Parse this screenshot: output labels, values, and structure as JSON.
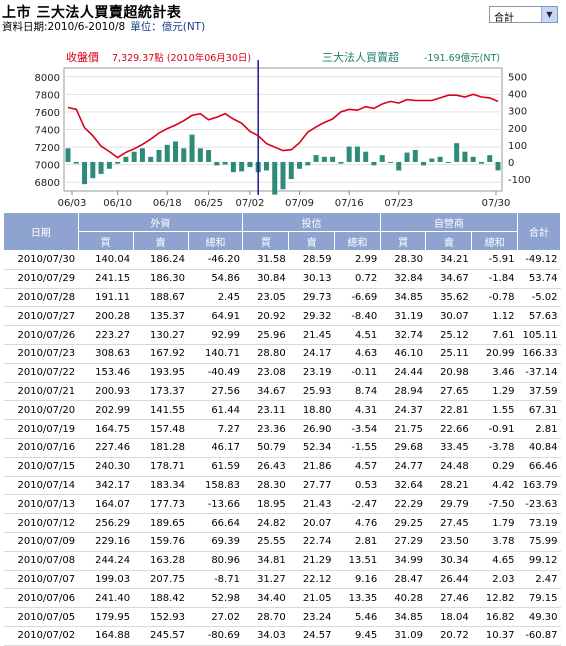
{
  "header": {
    "title": "上市 三大法人買賣超統計表",
    "range": "資料日期:2010/6-2010/8",
    "unit": "單位：億元(NT)"
  },
  "select": {
    "value": "合計"
  },
  "chart_data": {
    "type": "bar+line",
    "left_label": "收盤價",
    "left_value": "7,329.37點 (2010年06月30日)",
    "right_label": "三大法人買賣超",
    "right_value": "-191.69億元(NT)",
    "left_axis": {
      "ticks": [
        "8000",
        "7800",
        "7600",
        "7400",
        "7200",
        "7000",
        "6800"
      ],
      "min": 6700,
      "max": 8100
    },
    "right_axis": {
      "ticks": [
        "500",
        "400",
        "300",
        "200",
        "100",
        "0",
        "-100"
      ],
      "min": -170,
      "max": 550
    },
    "x_ticks": [
      "06/03",
      "06/10",
      "06/18",
      "06/25",
      "07/02",
      "07/09",
      "07/16",
      "07/23",
      "07/30"
    ],
    "marker_label": "06/30",
    "line_series": {
      "name": "收盤價",
      "values": [
        7650,
        7630,
        7420,
        7330,
        7210,
        7150,
        7080,
        7140,
        7180,
        7230,
        7290,
        7360,
        7410,
        7450,
        7500,
        7560,
        7580,
        7510,
        7540,
        7580,
        7520,
        7470,
        7380,
        7329,
        7240,
        7200,
        7160,
        7170,
        7250,
        7370,
        7430,
        7480,
        7520,
        7600,
        7630,
        7620,
        7660,
        7640,
        7690,
        7720,
        7700,
        7740,
        7730,
        7730,
        7730,
        7760,
        7790,
        7790,
        7770,
        7800,
        7770,
        7760,
        7720
      ]
    },
    "bar_series": {
      "name": "三大法人買賣超",
      "values": [
        80,
        -10,
        -130,
        -95,
        -70,
        -40,
        -10,
        30,
        60,
        80,
        30,
        70,
        100,
        120,
        80,
        160,
        80,
        70,
        -20,
        -15,
        -60,
        -55,
        -30,
        -60,
        -50,
        -191,
        -160,
        -100,
        -40,
        -20,
        40,
        30,
        30,
        -10,
        90,
        90,
        60,
        -20,
        40,
        -5,
        -50,
        55,
        70,
        -20,
        20,
        30,
        -5,
        110,
        60,
        30,
        -10,
        40,
        -49
      ]
    }
  },
  "table": {
    "headers": {
      "date": "日期",
      "foreign": "外資",
      "trust": "投信",
      "dealer": "自營商",
      "total": "合計",
      "buy": "買",
      "sell": "賣",
      "net": "總和"
    },
    "rows": [
      [
        "2010/07/30",
        "140.04",
        "186.24",
        "-46.20",
        "31.58",
        "28.59",
        "2.99",
        "28.30",
        "34.21",
        "-5.91",
        "-49.12"
      ],
      [
        "2010/07/29",
        "241.15",
        "186.30",
        "54.86",
        "30.84",
        "30.13",
        "0.72",
        "32.84",
        "34.67",
        "-1.84",
        "53.74"
      ],
      [
        "2010/07/28",
        "191.11",
        "188.67",
        "2.45",
        "23.05",
        "29.73",
        "-6.69",
        "34.85",
        "35.62",
        "-0.78",
        "-5.02"
      ],
      [
        "2010/07/27",
        "200.28",
        "135.37",
        "64.91",
        "20.92",
        "29.32",
        "-8.40",
        "31.19",
        "30.07",
        "1.12",
        "57.63"
      ],
      [
        "2010/07/26",
        "223.27",
        "130.27",
        "92.99",
        "25.96",
        "21.45",
        "4.51",
        "32.74",
        "25.12",
        "7.61",
        "105.11"
      ],
      [
        "2010/07/23",
        "308.63",
        "167.92",
        "140.71",
        "28.80",
        "24.17",
        "4.63",
        "46.10",
        "25.11",
        "20.99",
        "166.33"
      ],
      [
        "2010/07/22",
        "153.46",
        "193.95",
        "-40.49",
        "23.08",
        "23.19",
        "-0.11",
        "24.44",
        "20.98",
        "3.46",
        "-37.14"
      ],
      [
        "2010/07/21",
        "200.93",
        "173.37",
        "27.56",
        "34.67",
        "25.93",
        "8.74",
        "28.94",
        "27.65",
        "1.29",
        "37.59"
      ],
      [
        "2010/07/20",
        "202.99",
        "141.55",
        "61.44",
        "23.11",
        "18.80",
        "4.31",
        "24.37",
        "22.81",
        "1.55",
        "67.31"
      ],
      [
        "2010/07/19",
        "164.75",
        "157.48",
        "7.27",
        "23.36",
        "26.90",
        "-3.54",
        "21.75",
        "22.66",
        "-0.91",
        "2.81"
      ],
      [
        "2010/07/16",
        "227.46",
        "181.28",
        "46.17",
        "50.79",
        "52.34",
        "-1.55",
        "29.68",
        "33.45",
        "-3.78",
        "40.84"
      ],
      [
        "2010/07/15",
        "240.30",
        "178.71",
        "61.59",
        "26.43",
        "21.86",
        "4.57",
        "24.77",
        "24.48",
        "0.29",
        "66.46"
      ],
      [
        "2010/07/14",
        "342.17",
        "183.34",
        "158.83",
        "28.30",
        "27.77",
        "0.53",
        "32.64",
        "28.21",
        "4.42",
        "163.79"
      ],
      [
        "2010/07/13",
        "164.07",
        "177.73",
        "-13.66",
        "18.95",
        "21.43",
        "-2.47",
        "22.29",
        "29.79",
        "-7.50",
        "-23.63"
      ],
      [
        "2010/07/12",
        "256.29",
        "189.65",
        "66.64",
        "24.82",
        "20.07",
        "4.76",
        "29.25",
        "27.45",
        "1.79",
        "73.19"
      ],
      [
        "2010/07/09",
        "229.16",
        "159.76",
        "69.39",
        "25.55",
        "22.74",
        "2.81",
        "27.29",
        "23.50",
        "3.78",
        "75.99"
      ],
      [
        "2010/07/08",
        "244.24",
        "163.28",
        "80.96",
        "34.81",
        "21.29",
        "13.51",
        "34.99",
        "30.34",
        "4.65",
        "99.12"
      ],
      [
        "2010/07/07",
        "199.03",
        "207.75",
        "-8.71",
        "31.27",
        "22.12",
        "9.16",
        "28.47",
        "26.44",
        "2.03",
        "2.47"
      ],
      [
        "2010/07/06",
        "241.40",
        "188.42",
        "52.98",
        "34.40",
        "21.05",
        "13.35",
        "40.28",
        "27.46",
        "12.82",
        "79.15"
      ],
      [
        "2010/07/05",
        "179.95",
        "152.93",
        "27.02",
        "28.70",
        "23.24",
        "5.46",
        "34.85",
        "18.04",
        "16.82",
        "49.30"
      ],
      [
        "2010/07/02",
        "164.88",
        "245.57",
        "-80.69",
        "34.03",
        "24.57",
        "9.45",
        "31.09",
        "20.72",
        "10.37",
        "-60.87"
      ]
    ]
  },
  "colors": {
    "line": "#d9001b",
    "bar": "#2e8b7a",
    "header": "#8ea3d0",
    "marker": "#1a1a9c",
    "left_text": "#d9001b",
    "right_text": "#1f7f6a"
  }
}
